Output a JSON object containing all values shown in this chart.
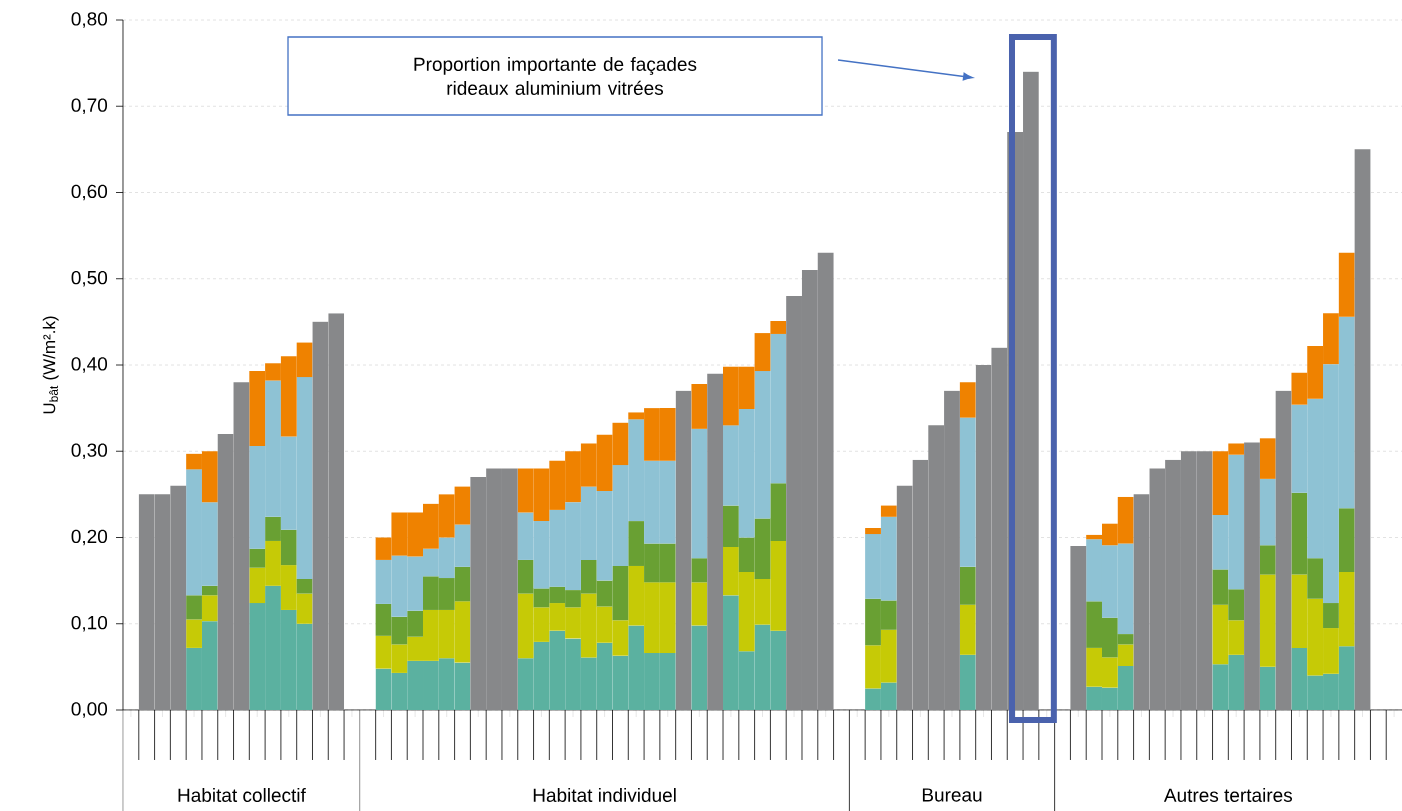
{
  "chart_data": {
    "type": "bar",
    "stacked": true,
    "ylabel": "U$_{bât}$ (W/m².k)",
    "annotations": [
      "Proportion importante de façades rideaux aluminium vitrées",
      "Habitat collectif",
      "Habitat individuel",
      "Bureau",
      "Autres tertaires"
    ],
    "categories": [
      null,
      null,
      null,
      null,
      null,
      null,
      null,
      null,
      null,
      null,
      null,
      null,
      null,
      null,
      null,
      null,
      null,
      null,
      null,
      null,
      null,
      null,
      null,
      null,
      null,
      null,
      null,
      null,
      null,
      null,
      null,
      null,
      null,
      null,
      null,
      null,
      null,
      null,
      null,
      null,
      null,
      null,
      null,
      null,
      null,
      null,
      null,
      null,
      null,
      null,
      null,
      null,
      null,
      null,
      null,
      null,
      null,
      null,
      null,
      null,
      null,
      null,
      null,
      null,
      null,
      null,
      null,
      null,
      null,
      null,
      null,
      null,
      null,
      null,
      null,
      null,
      null,
      null,
      null,
      null,
      null
    ],
    "ylim": [
      0,
      0.8
    ],
    "yticks": [
      {
        "value": 0,
        "label": "0,00"
      },
      {
        "value": 0.1,
        "label": "0,10"
      },
      {
        "value": 0.2,
        "label": "0,20"
      },
      {
        "value": 0.3,
        "label": "0,30"
      },
      {
        "value": 0.4,
        "label": "0,40"
      },
      {
        "value": 0.5,
        "label": "0,50"
      },
      {
        "value": 0.6,
        "label": "0,60"
      },
      {
        "value": 0.7,
        "label": "0,70"
      },
      {
        "value": 0.8,
        "label": "0,80"
      }
    ],
    "grid": "y",
    "tick_labels": "y",
    "series": [
      {
        "color": "#5bb1a0",
        "values": [
          null,
          null,
          null,
          null,
          0.072,
          0.103,
          null,
          null,
          0.124,
          0.144,
          0.116,
          0.1,
          null,
          null,
          null,
          null,
          0.048,
          0.043,
          0.057,
          0.057,
          0.06,
          0.055,
          null,
          null,
          null,
          0.06,
          0.079,
          0.092,
          0.083,
          0.061,
          0.078,
          0.063,
          0.098,
          0.066,
          0.066,
          null,
          0.098,
          null,
          0.133,
          0.068,
          0.099,
          0.092,
          null,
          null,
          null,
          null,
          null,
          0.025,
          0.032,
          null,
          null,
          null,
          null,
          0.064,
          null,
          null,
          null,
          null,
          null,
          null,
          null,
          0.027,
          0.026,
          0.051,
          null,
          null,
          null,
          null,
          null,
          0.053,
          0.064,
          null,
          0.05,
          null,
          0.072,
          0.04,
          0.042,
          0.074,
          null,
          null,
          null
        ]
      },
      {
        "color": "#c6ca06",
        "values": [
          null,
          null,
          null,
          null,
          0.033,
          0.03,
          null,
          null,
          0.041,
          0.052,
          0.052,
          0.035,
          null,
          null,
          null,
          null,
          0.038,
          0.033,
          0.028,
          0.059,
          0.056,
          0.071,
          null,
          null,
          null,
          0.075,
          0.04,
          0.032,
          0.036,
          0.074,
          0.042,
          0.041,
          0.069,
          0.082,
          0.082,
          null,
          0.05,
          null,
          0.056,
          0.092,
          0.053,
          0.104,
          null,
          null,
          null,
          null,
          null,
          0.05,
          0.061,
          null,
          null,
          null,
          null,
          0.058,
          null,
          null,
          null,
          null,
          null,
          null,
          null,
          0.045,
          0.035,
          0.025,
          null,
          null,
          null,
          null,
          null,
          0.069,
          0.04,
          null,
          0.107,
          null,
          0.085,
          0.089,
          0.053,
          0.086,
          null,
          null,
          null
        ]
      },
      {
        "color": "#69a033",
        "values": [
          null,
          null,
          null,
          null,
          0.028,
          0.011,
          null,
          null,
          0.022,
          0.028,
          0.041,
          0.017,
          null,
          null,
          null,
          null,
          0.037,
          0.032,
          0.03,
          0.039,
          0.037,
          0.04,
          null,
          null,
          null,
          0.039,
          0.022,
          0.019,
          0.02,
          0.039,
          0.03,
          0.063,
          0.052,
          0.045,
          0.045,
          null,
          0.028,
          null,
          0.048,
          0.04,
          0.07,
          0.067,
          null,
          null,
          null,
          null,
          null,
          0.054,
          0.034,
          null,
          null,
          null,
          null,
          0.044,
          null,
          null,
          null,
          null,
          null,
          null,
          null,
          0.054,
          0.046,
          0.012,
          null,
          null,
          null,
          null,
          null,
          0.041,
          0.036,
          null,
          0.034,
          null,
          0.095,
          0.047,
          0.029,
          0.074,
          null,
          null,
          null
        ]
      },
      {
        "color": "#8ec2d4",
        "values": [
          null,
          null,
          null,
          null,
          0.146,
          0.097,
          null,
          null,
          0.119,
          0.158,
          0.108,
          0.234,
          null,
          null,
          null,
          null,
          0.051,
          0.071,
          0.063,
          0.032,
          0.047,
          0.049,
          null,
          null,
          null,
          0.055,
          0.078,
          0.089,
          0.102,
          0.085,
          0.104,
          0.117,
          0.118,
          0.096,
          0.096,
          null,
          0.15,
          null,
          0.093,
          0.149,
          0.171,
          0.173,
          null,
          null,
          null,
          null,
          null,
          0.075,
          0.097,
          null,
          null,
          null,
          null,
          0.173,
          null,
          null,
          null,
          null,
          null,
          null,
          null,
          0.072,
          0.084,
          0.105,
          null,
          null,
          null,
          null,
          null,
          0.063,
          0.156,
          null,
          0.077,
          null,
          0.102,
          0.185,
          0.277,
          0.222,
          null,
          null,
          null
        ]
      },
      {
        "color": "#ef8200",
        "values": [
          null,
          null,
          null,
          null,
          0.018,
          0.059,
          null,
          null,
          0.087,
          0.02,
          0.093,
          0.04,
          null,
          null,
          null,
          null,
          0.026,
          0.05,
          0.051,
          0.052,
          0.05,
          0.044,
          null,
          null,
          null,
          0.051,
          0.061,
          0.057,
          0.059,
          0.05,
          0.065,
          0.049,
          0.008,
          0.061,
          0.061,
          null,
          0.052,
          null,
          0.068,
          0.049,
          0.044,
          0.015,
          null,
          null,
          null,
          null,
          null,
          0.007,
          0.013,
          null,
          null,
          null,
          null,
          0.041,
          null,
          null,
          null,
          null,
          null,
          null,
          null,
          0.005,
          0.025,
          0.054,
          null,
          null,
          null,
          null,
          null,
          0.074,
          0.013,
          null,
          0.047,
          null,
          0.037,
          0.061,
          0.059,
          0.074,
          null,
          null,
          null
        ]
      },
      {
        "color": "#87888a",
        "values": [
          null,
          0.25,
          0.25,
          0.26,
          null,
          null,
          0.32,
          0.38,
          null,
          null,
          null,
          null,
          0.45,
          0.46,
          null,
          null,
          null,
          null,
          null,
          null,
          null,
          null,
          0.27,
          0.28,
          0.28,
          null,
          null,
          null,
          null,
          null,
          null,
          null,
          null,
          null,
          null,
          0.37,
          null,
          0.39,
          null,
          null,
          null,
          null,
          0.48,
          0.51,
          0.53,
          null,
          null,
          null,
          null,
          0.26,
          0.29,
          0.33,
          0.37,
          null,
          0.4,
          0.42,
          0.67,
          0.74,
          null,
          null,
          0.19,
          null,
          null,
          null,
          0.25,
          0.28,
          0.29,
          0.3,
          0.3,
          null,
          null,
          0.31,
          null,
          0.37,
          null,
          null,
          null,
          null,
          0.65,
          null,
          null
        ]
      }
    ]
  }
}
